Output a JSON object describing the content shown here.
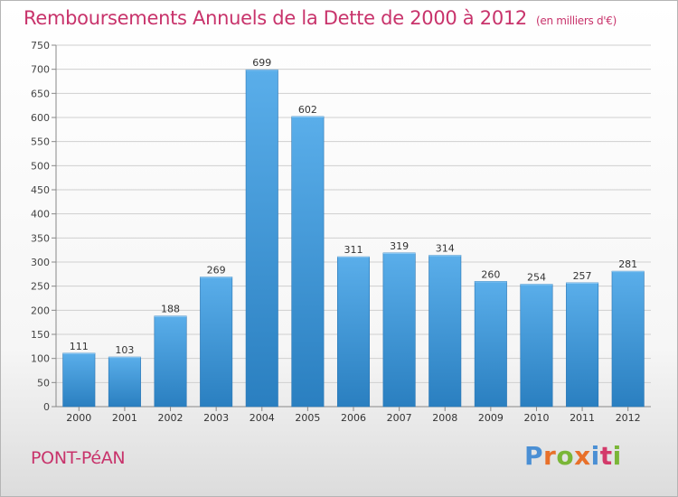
{
  "title": "Remboursements Annuels de la Dette de 2000 à 2012",
  "unit": "(en milliers d'€)",
  "city": "PONT-PéAN",
  "logo": {
    "text": "Proxiti",
    "letter_colors": [
      "#4a8fd4",
      "#e8702a",
      "#7ab637",
      "#e8702a",
      "#4a8fd4",
      "#d33a6a",
      "#7ab637"
    ]
  },
  "colors": {
    "title": "#c8336b",
    "bar_light": "#5aaeea",
    "bar_dark": "#2a7fc0",
    "grid": "#cfcfcf"
  },
  "chart_data": {
    "type": "bar",
    "title": "Remboursements Annuels de la Dette de 2000 à 2012",
    "categories": [
      "2000",
      "2001",
      "2002",
      "2003",
      "2004",
      "2005",
      "2006",
      "2007",
      "2008",
      "2009",
      "2010",
      "2011",
      "2012"
    ],
    "values": [
      111,
      103,
      188,
      269,
      699,
      602,
      311,
      319,
      314,
      260,
      254,
      257,
      281
    ],
    "ylim": [
      0,
      750
    ],
    "yticks": [
      0,
      50,
      100,
      150,
      200,
      250,
      300,
      350,
      400,
      450,
      500,
      550,
      600,
      650,
      700,
      750
    ],
    "grid": true,
    "data_labels": true
  }
}
